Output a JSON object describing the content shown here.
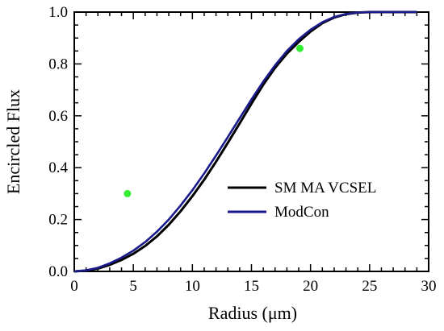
{
  "chart_data": {
    "type": "line",
    "xlabel": "Radius (μm)",
    "ylabel": "Encircled Flux",
    "xlim": [
      0,
      30
    ],
    "ylim": [
      0,
      1.0
    ],
    "xticks": [
      "0",
      "5",
      "10",
      "15",
      "20",
      "25",
      "30"
    ],
    "yticks": [
      "0.0",
      "0.2",
      "0.4",
      "0.6",
      "0.8",
      "1.0"
    ],
    "grid": false,
    "legend_position": "lower-right",
    "series": [
      {
        "name": "SM MA VCSEL",
        "color": "#000000",
        "x": [
          0,
          1,
          2,
          3,
          4,
          5,
          6,
          7,
          8,
          9,
          10,
          11,
          12,
          13,
          14,
          15,
          16,
          17,
          18,
          19,
          20,
          21,
          22,
          23,
          24,
          25,
          26,
          27,
          28,
          29
        ],
        "y": [
          0,
          0.003,
          0.011,
          0.025,
          0.044,
          0.068,
          0.098,
          0.135,
          0.18,
          0.232,
          0.29,
          0.354,
          0.423,
          0.496,
          0.571,
          0.647,
          0.72,
          0.785,
          0.84,
          0.885,
          0.925,
          0.957,
          0.979,
          0.992,
          0.998,
          1.0,
          1.0,
          1.0,
          1.0,
          1.0
        ]
      },
      {
        "name": "ModCon",
        "color": "#1a1a8c",
        "x": [
          0,
          1,
          2,
          3,
          4,
          5,
          6,
          7,
          8,
          9,
          10,
          11,
          12,
          13,
          14,
          15,
          16,
          17,
          18,
          19,
          20,
          21,
          22,
          23,
          24,
          25,
          26,
          27,
          28,
          29
        ],
        "y": [
          0,
          0.004,
          0.014,
          0.031,
          0.053,
          0.08,
          0.113,
          0.153,
          0.2,
          0.254,
          0.313,
          0.378,
          0.447,
          0.518,
          0.591,
          0.663,
          0.732,
          0.795,
          0.85,
          0.895,
          0.932,
          0.961,
          0.981,
          0.993,
          0.998,
          1.0,
          1.0,
          1.0,
          1.0,
          1.0
        ]
      },
      {
        "name": "",
        "type": "scatter",
        "color": "#33ee33",
        "x": [
          4.5,
          19.1
        ],
        "y": [
          0.3,
          0.86
        ]
      }
    ]
  }
}
